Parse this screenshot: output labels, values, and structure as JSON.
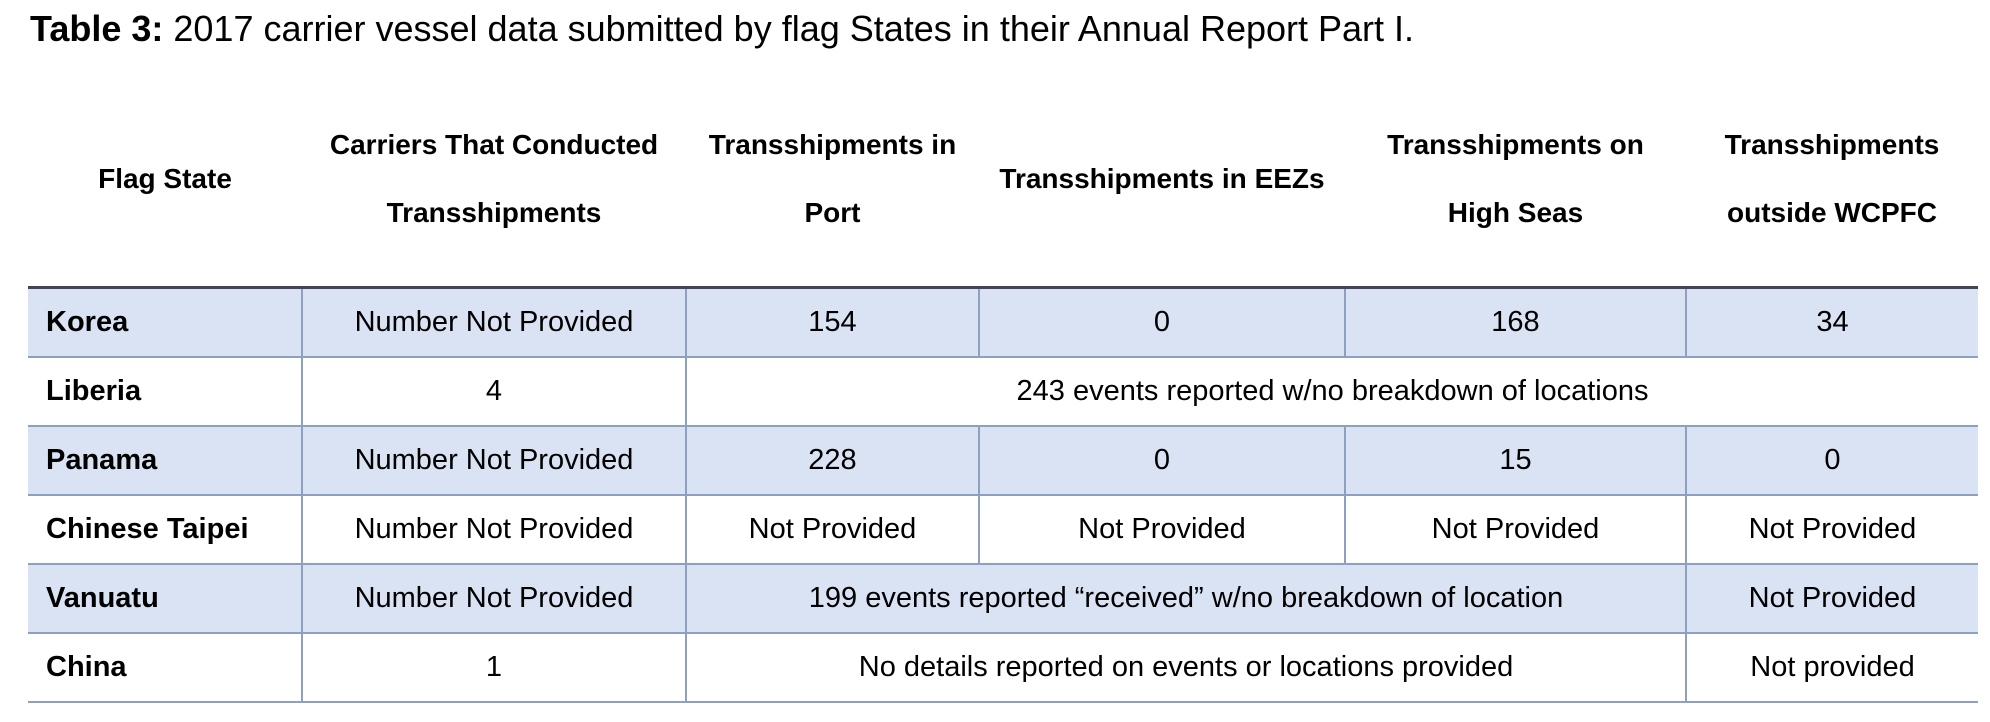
{
  "title": {
    "label": "Table 3:",
    "text": "2017 carrier vessel data submitted by flag States in their Annual Report Part I."
  },
  "table": {
    "header": [
      "Flag State",
      "Carriers That Conducted Transshipments",
      "Transshipments in Port",
      "Transshipments in EEZs",
      "Transshipments on High Seas",
      "Transshipments outside WCPFC"
    ],
    "rows": [
      [
        "Korea",
        "Number Not Provided",
        "154",
        "0",
        "168",
        "34"
      ],
      [
        "Liberia",
        "4",
        "243 events reported w/no breakdown of locations"
      ],
      [
        "Panama",
        "Number Not Provided",
        "228",
        "0",
        "15",
        "0"
      ],
      [
        "Chinese Taipei",
        "Number Not Provided",
        "Not Provided",
        "Not Provided",
        "Not Provided",
        "Not Provided"
      ],
      [
        "Vanuatu",
        "Number Not Provided",
        "199 events reported “received” w/no breakdown of location",
        "Not Provided"
      ],
      [
        "China",
        "1",
        "No details reported on events or locations provided",
        "Not provided"
      ]
    ]
  }
}
